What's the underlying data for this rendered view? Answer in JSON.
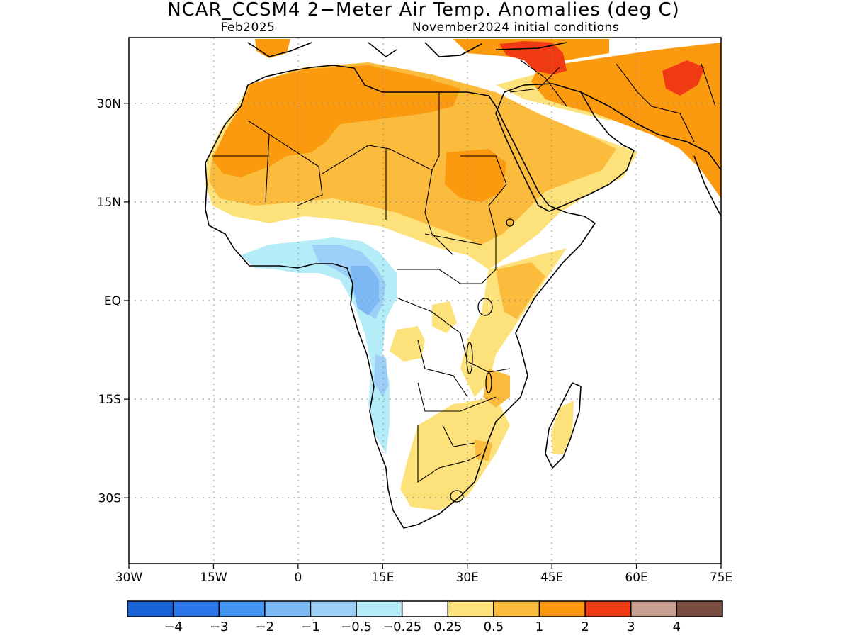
{
  "title": "NCAR_CCSM4 2−Meter Air Temp. Anomalies (deg C)",
  "subtitle_left": "Feb2025",
  "subtitle_right": "November2024 initial conditions",
  "axes": {
    "lon_ticks": [
      "30W",
      "15W",
      "0",
      "15E",
      "30E",
      "45E",
      "60E",
      "75E"
    ],
    "lon_values": [
      -30,
      -15,
      0,
      15,
      30,
      45,
      60,
      75
    ],
    "lat_ticks": [
      "30N",
      "15N",
      "EQ",
      "15S",
      "30S"
    ],
    "lat_values": [
      30,
      15,
      0,
      -15,
      -30
    ],
    "lon_range": [
      -30,
      75
    ],
    "lat_range": [
      -40,
      40
    ],
    "grid": "dotted"
  },
  "legend": {
    "labels": [
      "−4",
      "−3",
      "−2",
      "−1",
      "−0.5",
      "−0.25",
      "0.25",
      "0.5",
      "1",
      "2",
      "3",
      "4"
    ],
    "colors": [
      "#1a63d6",
      "#2e77ea",
      "#4494f2",
      "#7bb8f4",
      "#9dcef7",
      "#b4ecf8",
      "#ffffff",
      "#fde17a",
      "#fbbc3d",
      "#fb9a0f",
      "#f03a14",
      "#c89f91",
      "#7a4c40"
    ]
  }
}
